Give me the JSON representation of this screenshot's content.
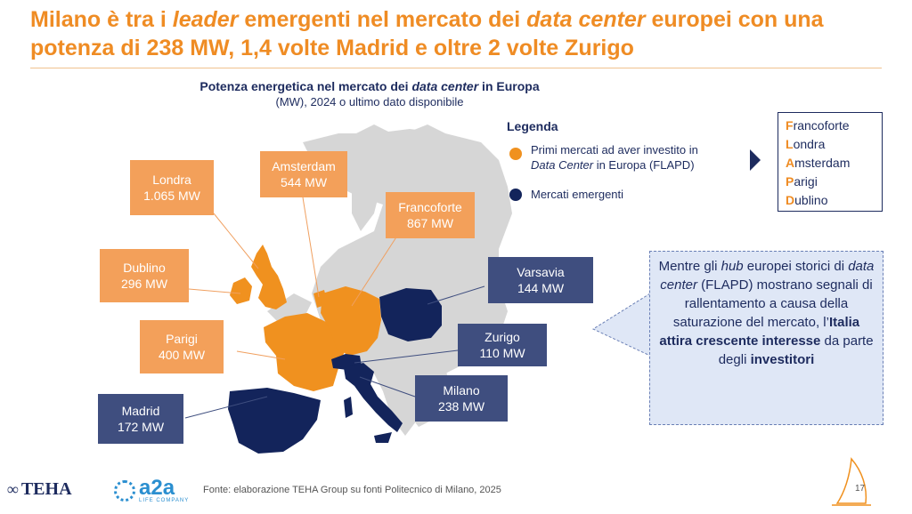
{
  "title": {
    "part1": "Milano è tra i ",
    "italic1": "leader",
    "part2": " emergenti nel mercato dei ",
    "italic2": "data center",
    "part3": " europei con una potenza di 238 MW, 1,4 volte Madrid e oltre 2 volte Zurigo"
  },
  "subtitle": {
    "line1_a": "Potenza energetica nel mercato dei ",
    "line1_italic": "data center",
    "line1_b": " in Europa",
    "line2": "(MW), 2024 o ultimo dato disponibile"
  },
  "colors": {
    "orange": "#f3a05a",
    "navy": "#3f4e7f",
    "country_orange": "#f0911f",
    "country_navy": "#13245b",
    "map_grey": "#d6d6d6"
  },
  "cities": {
    "londra": {
      "name": "Londra",
      "value": "1.065 MW"
    },
    "amsterdam": {
      "name": "Amsterdam",
      "value": "544 MW"
    },
    "francoforte": {
      "name": "Francoforte",
      "value": "867 MW"
    },
    "dublino": {
      "name": "Dublino",
      "value": "296 MW"
    },
    "parigi": {
      "name": "Parigi",
      "value": "400 MW"
    },
    "madrid": {
      "name": "Madrid",
      "value": "172 MW"
    },
    "varsavia": {
      "name": "Varsavia",
      "value": "144 MW"
    },
    "zurigo": {
      "name": "Zurigo",
      "value": "110 MW"
    },
    "milano": {
      "name": "Milano",
      "value": "238 MW"
    }
  },
  "legend": {
    "title": "Legenda",
    "item1_a": "Primi mercati ad aver investito in",
    "item1_italic": "Data Center",
    "item1_b": " in Europa (FLAPD)",
    "item2": "Mercati emergenti"
  },
  "flapd": [
    {
      "initial": "F",
      "rest": "rancoforte"
    },
    {
      "initial": "L",
      "rest": "ondra"
    },
    {
      "initial": "A",
      "rest": "msterdam"
    },
    {
      "initial": "P",
      "rest": "arigi"
    },
    {
      "initial": "D",
      "rest": "ublino"
    }
  ],
  "callout": {
    "t1": "Mentre gli ",
    "i1": "hub",
    "t2": " europei storici di ",
    "i2": "data center",
    "t3": " (FLAPD) mostrano segnali di rallentamento a causa della saturazione del mercato, l’",
    "b1": "Italia attira crescente interesse",
    "t4": " da parte degli ",
    "b2": "investitori"
  },
  "source": "Fonte: elaborazione TEHA Group su fonti Politecnico di Milano, 2025",
  "logos": {
    "teha": "TEHA",
    "a2a": "a2a",
    "a2a_sub": "LIFE COMPANY"
  },
  "page_number": "17"
}
